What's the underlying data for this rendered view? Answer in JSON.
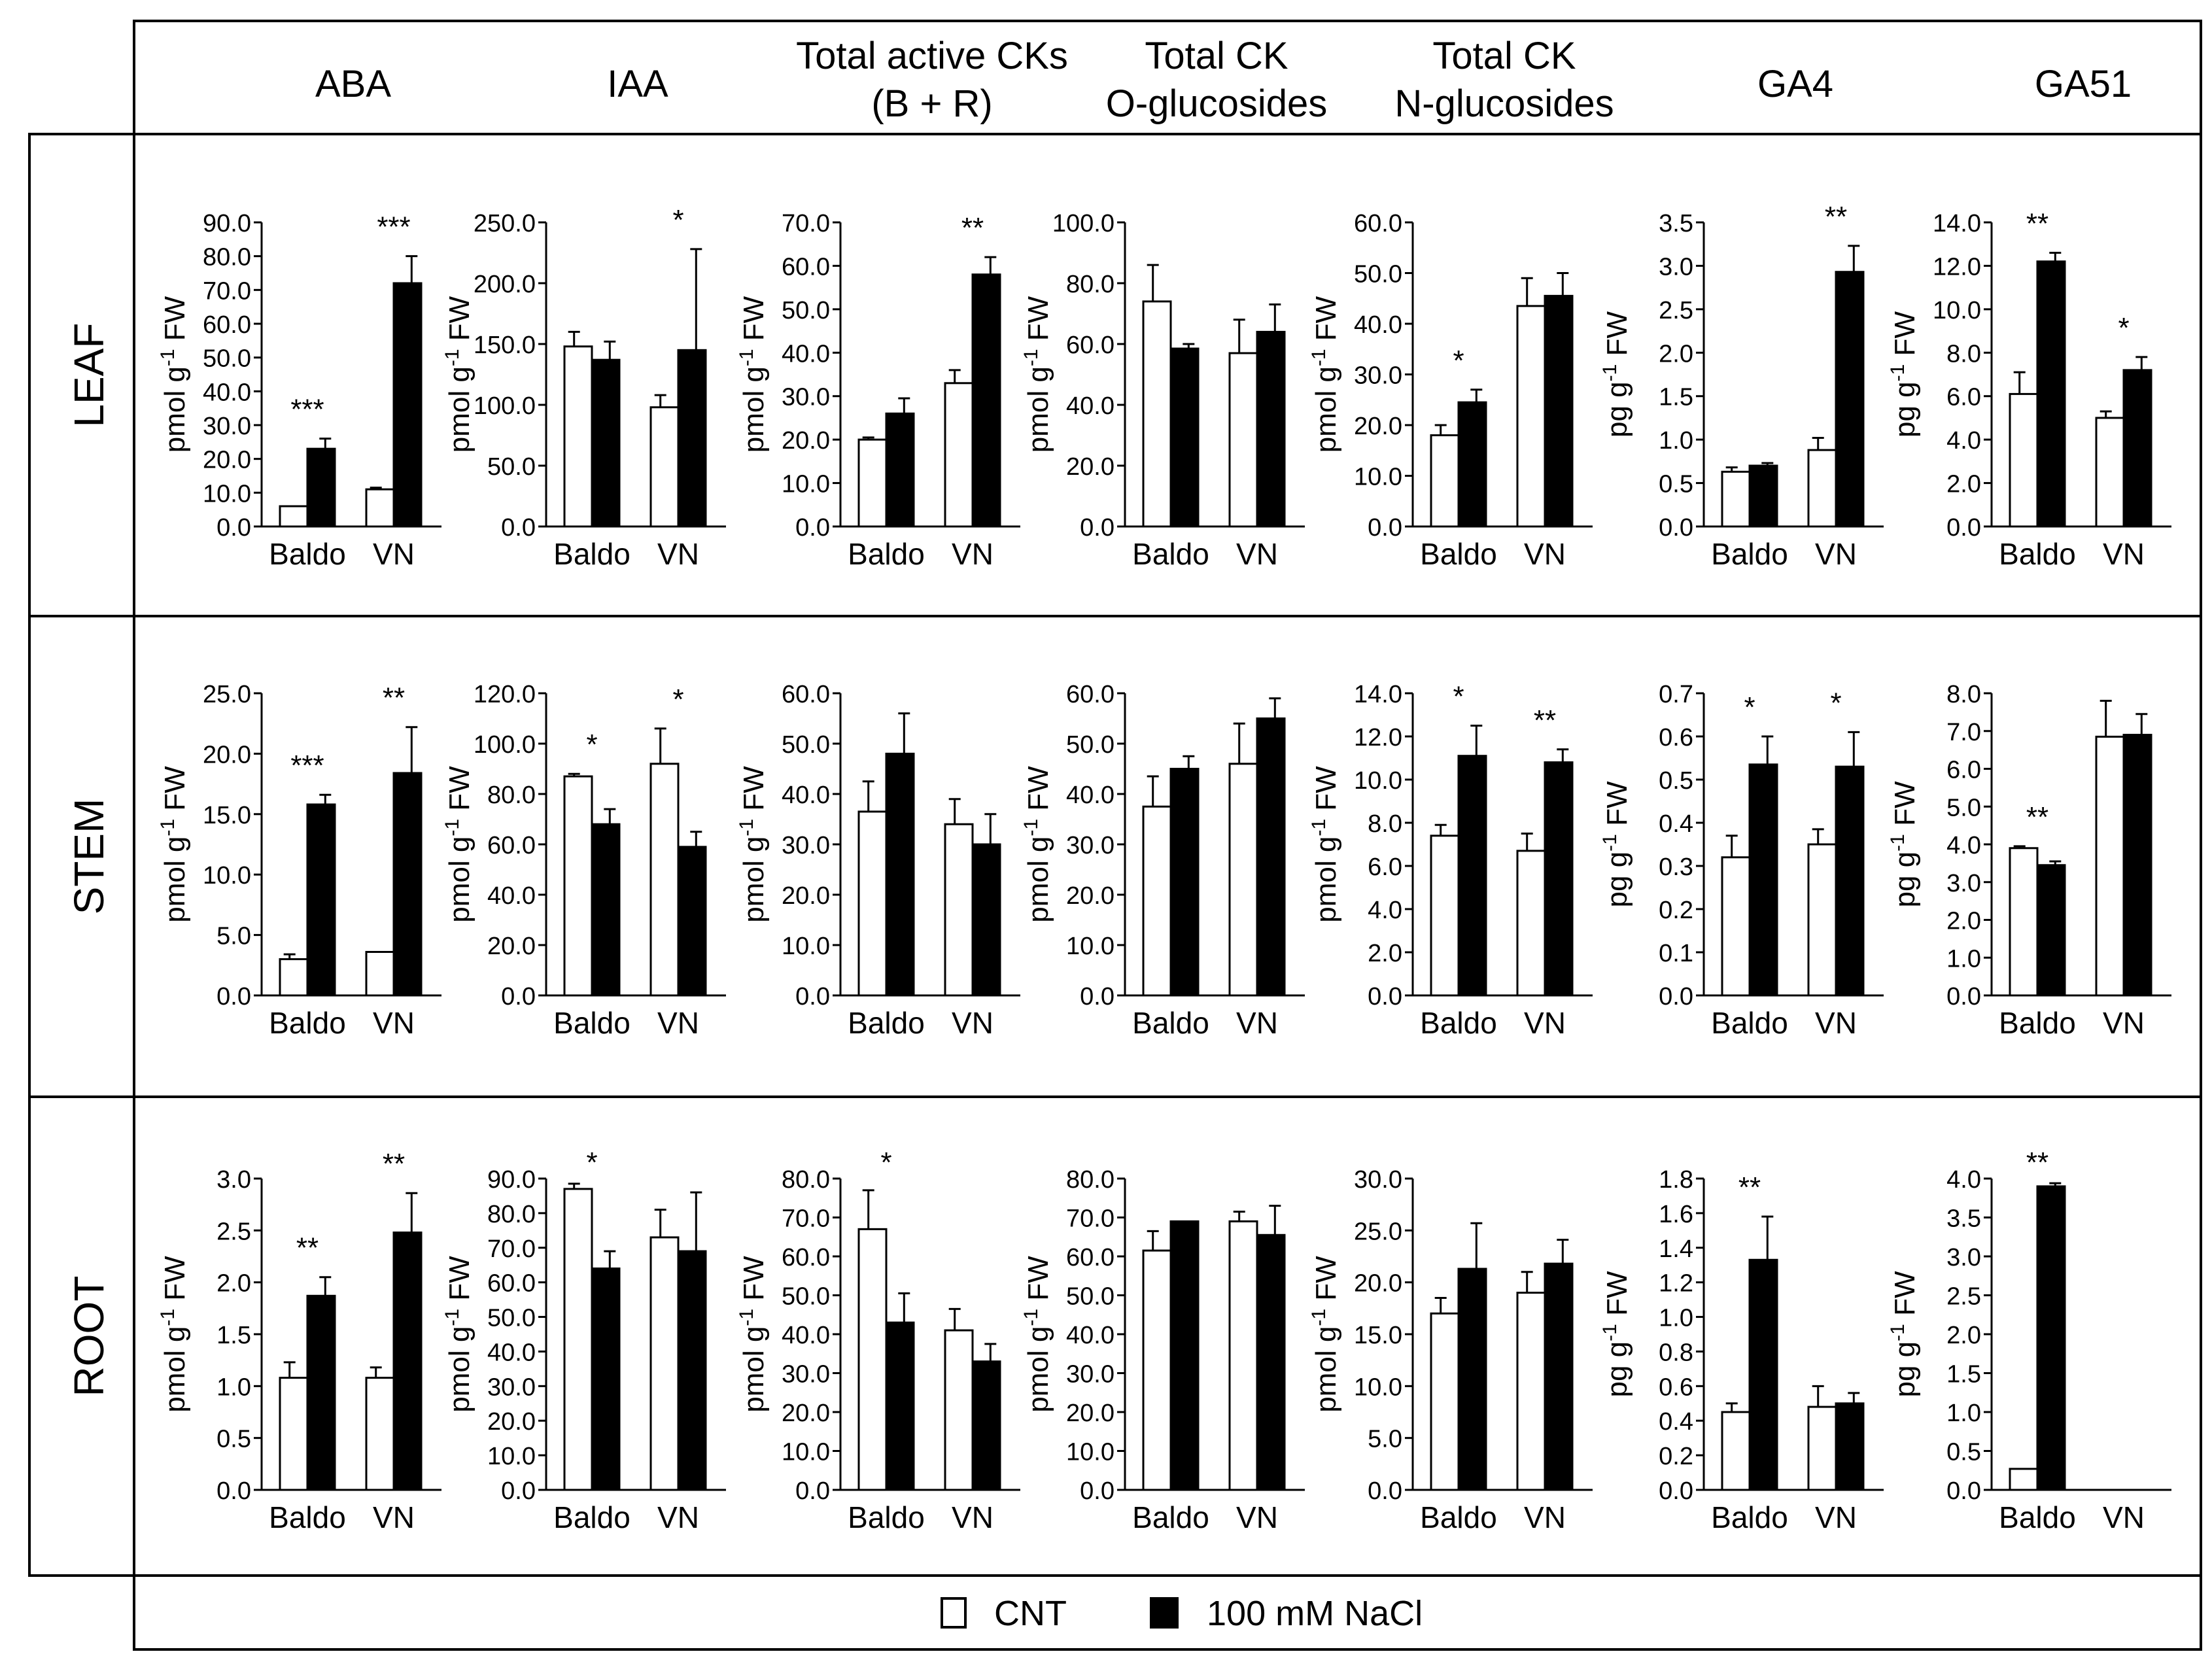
{
  "columns": [
    "ABA",
    "IAA",
    "Total active CKs\n(B + R)",
    "Total CK\nO-glucosides",
    "Total CK\nN-glucosides",
    "GA4",
    "GA51"
  ],
  "rows": [
    "LEAF",
    "STEM",
    "ROOT"
  ],
  "legend": {
    "cnt": "CNT",
    "nacl": "100 mM NaCl"
  },
  "colors": {
    "cnt": "#ffffff",
    "nacl": "#000000",
    "stroke": "#000000"
  },
  "chart_data": [
    {
      "type": "bar",
      "row": "LEAF",
      "hormone": "ABA",
      "ylabel": "pmol g-1 FW",
      "ylim": [
        0,
        90
      ],
      "ticks": [
        "0.0",
        "10.0",
        "20.0",
        "30.0",
        "40.0",
        "50.0",
        "60.0",
        "70.0",
        "80.0",
        "90.0"
      ],
      "categories": [
        "Baldo",
        "VN"
      ],
      "series": [
        {
          "name": "CNT",
          "values": [
            6,
            11
          ],
          "errors": [
            0,
            0.5
          ]
        },
        {
          "name": "100 mM NaCl",
          "values": [
            23,
            72
          ],
          "errors": [
            3,
            8
          ]
        }
      ],
      "significance": [
        "***",
        "***"
      ]
    },
    {
      "type": "bar",
      "row": "LEAF",
      "hormone": "IAA",
      "ylabel": "pmol g-1 FW",
      "ylim": [
        0,
        250
      ],
      "ticks": [
        "0.0",
        "50.0",
        "100.0",
        "150.0",
        "200.0",
        "250.0"
      ],
      "categories": [
        "Baldo",
        "VN"
      ],
      "series": [
        {
          "name": "CNT",
          "values": [
            148,
            98
          ],
          "errors": [
            12,
            10
          ]
        },
        {
          "name": "100 mM NaCl",
          "values": [
            137,
            145
          ],
          "errors": [
            15,
            83
          ]
        }
      ],
      "significance": [
        "",
        "*"
      ]
    },
    {
      "type": "bar",
      "row": "LEAF",
      "hormone": "Total active CKs (B + R)",
      "ylabel": "pmol g-1 FW",
      "ylim": [
        0,
        70
      ],
      "ticks": [
        "0.0",
        "10.0",
        "20.0",
        "30.0",
        "40.0",
        "50.0",
        "60.0",
        "70.0"
      ],
      "categories": [
        "Baldo",
        "VN"
      ],
      "series": [
        {
          "name": "CNT",
          "values": [
            20,
            33
          ],
          "errors": [
            0.5,
            3
          ]
        },
        {
          "name": "100 mM NaCl",
          "values": [
            26,
            58
          ],
          "errors": [
            3.5,
            4
          ]
        }
      ],
      "significance": [
        "",
        "**"
      ]
    },
    {
      "type": "bar",
      "row": "LEAF",
      "hormone": "Total CK O-glucosides",
      "ylabel": "pmol g-1 FW",
      "ylim": [
        0,
        100
      ],
      "ticks": [
        "0.0",
        "20.0",
        "40.0",
        "60.0",
        "80.0",
        "100.0"
      ],
      "categories": [
        "Baldo",
        "VN"
      ],
      "series": [
        {
          "name": "CNT",
          "values": [
            74,
            57
          ],
          "errors": [
            12,
            11
          ]
        },
        {
          "name": "100 mM NaCl",
          "values": [
            58.5,
            64
          ],
          "errors": [
            1.5,
            9
          ]
        }
      ],
      "significance": [
        "",
        ""
      ]
    },
    {
      "type": "bar",
      "row": "LEAF",
      "hormone": "Total CK N-glucosides",
      "ylabel": "pmol g-1 FW",
      "ylim": [
        0,
        60
      ],
      "ticks": [
        "0.0",
        "10.0",
        "20.0",
        "30.0",
        "40.0",
        "50.0",
        "60.0"
      ],
      "categories": [
        "Baldo",
        "VN"
      ],
      "series": [
        {
          "name": "CNT",
          "values": [
            18,
            43.5
          ],
          "errors": [
            2,
            5.5
          ]
        },
        {
          "name": "100 mM NaCl",
          "values": [
            24.5,
            45.5
          ],
          "errors": [
            2.5,
            4.5
          ]
        }
      ],
      "significance": [
        "*",
        ""
      ]
    },
    {
      "type": "bar",
      "row": "LEAF",
      "hormone": "GA4",
      "ylabel": "pg g-1 FW",
      "ylim": [
        0,
        3.5
      ],
      "ticks": [
        "0.0",
        "0.5",
        "1.0",
        "1.5",
        "2.0",
        "2.5",
        "3.0",
        "3.5"
      ],
      "categories": [
        "Baldo",
        "VN"
      ],
      "series": [
        {
          "name": "CNT",
          "values": [
            0.63,
            0.88
          ],
          "errors": [
            0.05,
            0.14
          ]
        },
        {
          "name": "100 mM NaCl",
          "values": [
            0.7,
            2.93
          ],
          "errors": [
            0.03,
            0.3
          ]
        }
      ],
      "significance": [
        "",
        "**"
      ]
    },
    {
      "type": "bar",
      "row": "LEAF",
      "hormone": "GA51",
      "ylabel": "pg g-1 FW",
      "ylim": [
        0,
        14
      ],
      "ticks": [
        "0.0",
        "2.0",
        "4.0",
        "6.0",
        "8.0",
        "10.0",
        "12.0",
        "14.0"
      ],
      "categories": [
        "Baldo",
        "VN"
      ],
      "series": [
        {
          "name": "CNT",
          "values": [
            6.1,
            5
          ],
          "errors": [
            1,
            0.3
          ]
        },
        {
          "name": "100 mM NaCl",
          "values": [
            12.2,
            7.2
          ],
          "errors": [
            0.4,
            0.6
          ]
        }
      ],
      "significance": [
        "**",
        "*"
      ]
    },
    {
      "type": "bar",
      "row": "STEM",
      "hormone": "ABA",
      "ylabel": "pmol g-1 FW",
      "ylim": [
        0,
        25
      ],
      "ticks": [
        "0.0",
        "5.0",
        "10.0",
        "15.0",
        "20.0",
        "25.0"
      ],
      "categories": [
        "Baldo",
        "VN"
      ],
      "series": [
        {
          "name": "CNT",
          "values": [
            3,
            3.6
          ],
          "errors": [
            0.4,
            0
          ]
        },
        {
          "name": "100 mM NaCl",
          "values": [
            15.8,
            18.4
          ],
          "errors": [
            0.8,
            3.8
          ]
        }
      ],
      "significance": [
        "***",
        "**"
      ]
    },
    {
      "type": "bar",
      "row": "STEM",
      "hormone": "IAA",
      "ylabel": "pmol g-1 FW",
      "ylim": [
        0,
        120
      ],
      "ticks": [
        "0.0",
        "20.0",
        "40.0",
        "60.0",
        "80.0",
        "100.0",
        "120.0"
      ],
      "categories": [
        "Baldo",
        "VN"
      ],
      "series": [
        {
          "name": "CNT",
          "values": [
            87,
            92
          ],
          "errors": [
            1,
            14
          ]
        },
        {
          "name": "100 mM NaCl",
          "values": [
            68,
            59
          ],
          "errors": [
            6,
            6
          ]
        }
      ],
      "significance": [
        "*",
        "*"
      ]
    },
    {
      "type": "bar",
      "row": "STEM",
      "hormone": "Total active CKs (B + R)",
      "ylabel": "pmol g-1 FW",
      "ylim": [
        0,
        60
      ],
      "ticks": [
        "0.0",
        "10.0",
        "20.0",
        "30.0",
        "40.0",
        "50.0",
        "60.0"
      ],
      "categories": [
        "Baldo",
        "VN"
      ],
      "series": [
        {
          "name": "CNT",
          "values": [
            36.5,
            34
          ],
          "errors": [
            6,
            5
          ]
        },
        {
          "name": "100 mM NaCl",
          "values": [
            48,
            30
          ],
          "errors": [
            8,
            6
          ]
        }
      ],
      "significance": [
        "",
        ""
      ]
    },
    {
      "type": "bar",
      "row": "STEM",
      "hormone": "Total CK O-glucosides",
      "ylabel": "pmol g-1 FW",
      "ylim": [
        0,
        60
      ],
      "ticks": [
        "0.0",
        "10.0",
        "20.0",
        "30.0",
        "40.0",
        "50.0",
        "60.0"
      ],
      "categories": [
        "Baldo",
        "VN"
      ],
      "series": [
        {
          "name": "CNT",
          "values": [
            37.5,
            46
          ],
          "errors": [
            6,
            8
          ]
        },
        {
          "name": "100 mM NaCl",
          "values": [
            45,
            55
          ],
          "errors": [
            2.5,
            4
          ]
        }
      ],
      "significance": [
        "",
        ""
      ]
    },
    {
      "type": "bar",
      "row": "STEM",
      "hormone": "Total CK N-glucosides",
      "ylabel": "pmol g-1 FW",
      "ylim": [
        0,
        14
      ],
      "ticks": [
        "0.0",
        "2.0",
        "4.0",
        "6.0",
        "8.0",
        "10.0",
        "12.0",
        "14.0"
      ],
      "categories": [
        "Baldo",
        "VN"
      ],
      "series": [
        {
          "name": "CNT",
          "values": [
            7.4,
            6.7
          ],
          "errors": [
            0.5,
            0.8
          ]
        },
        {
          "name": "100 mM NaCl",
          "values": [
            11.1,
            10.8
          ],
          "errors": [
            1.4,
            0.6
          ]
        }
      ],
      "significance": [
        "*",
        "**"
      ]
    },
    {
      "type": "bar",
      "row": "STEM",
      "hormone": "GA4",
      "ylabel": "pg g-1 FW",
      "ylim": [
        0,
        0.7
      ],
      "ticks": [
        "0.0",
        "0.1",
        "0.2",
        "0.3",
        "0.4",
        "0.5",
        "0.6",
        "0.7"
      ],
      "categories": [
        "Baldo",
        "VN"
      ],
      "series": [
        {
          "name": "CNT",
          "values": [
            0.32,
            0.35
          ],
          "errors": [
            0.05,
            0.035
          ]
        },
        {
          "name": "100 mM NaCl",
          "values": [
            0.535,
            0.53
          ],
          "errors": [
            0.065,
            0.08
          ]
        }
      ],
      "significance": [
        "*",
        "*"
      ]
    },
    {
      "type": "bar",
      "row": "STEM",
      "hormone": "GA51",
      "ylabel": "pg g-1 FW",
      "ylim": [
        0,
        8
      ],
      "ticks": [
        "0.0",
        "1.0",
        "2.0",
        "3.0",
        "4.0",
        "5.0",
        "6.0",
        "7.0",
        "8.0"
      ],
      "categories": [
        "Baldo",
        "VN"
      ],
      "series": [
        {
          "name": "CNT",
          "values": [
            3.9,
            6.85
          ],
          "errors": [
            0.05,
            0.95
          ]
        },
        {
          "name": "100 mM NaCl",
          "values": [
            3.45,
            6.9
          ],
          "errors": [
            0.1,
            0.55
          ]
        }
      ],
      "significance": [
        "**",
        ""
      ]
    },
    {
      "type": "bar",
      "row": "ROOT",
      "hormone": "ABA",
      "ylabel": "pmol g-1 FW",
      "ylim": [
        0,
        3
      ],
      "ticks": [
        "0.0",
        "0.5",
        "1.0",
        "1.5",
        "2.0",
        "2.5",
        "3.0"
      ],
      "categories": [
        "Baldo",
        "VN"
      ],
      "series": [
        {
          "name": "CNT",
          "values": [
            1.08,
            1.08
          ],
          "errors": [
            0.15,
            0.1
          ]
        },
        {
          "name": "100 mM NaCl",
          "values": [
            1.87,
            2.48
          ],
          "errors": [
            0.18,
            0.38
          ]
        }
      ],
      "significance": [
        "**",
        "**"
      ]
    },
    {
      "type": "bar",
      "row": "ROOT",
      "hormone": "IAA",
      "ylabel": "pmol g-1 FW",
      "ylim": [
        0,
        90
      ],
      "ticks": [
        "0.0",
        "10.0",
        "20.0",
        "30.0",
        "40.0",
        "50.0",
        "60.0",
        "70.0",
        "80.0",
        "90.0"
      ],
      "categories": [
        "Baldo",
        "VN"
      ],
      "series": [
        {
          "name": "CNT",
          "values": [
            87,
            73
          ],
          "errors": [
            1.5,
            8
          ]
        },
        {
          "name": "100 mM NaCl",
          "values": [
            64,
            69
          ],
          "errors": [
            5,
            17
          ]
        }
      ],
      "significance": [
        "*",
        ""
      ]
    },
    {
      "type": "bar",
      "row": "ROOT",
      "hormone": "Total active CKs (B + R)",
      "ylabel": "pmol g-1 FW",
      "ylim": [
        0,
        80
      ],
      "ticks": [
        "0.0",
        "10.0",
        "20.0",
        "30.0",
        "40.0",
        "50.0",
        "60.0",
        "70.0",
        "80.0"
      ],
      "categories": [
        "Baldo",
        "VN"
      ],
      "series": [
        {
          "name": "CNT",
          "values": [
            67,
            41
          ],
          "errors": [
            10,
            5.5
          ]
        },
        {
          "name": "100 mM NaCl",
          "values": [
            43,
            33
          ],
          "errors": [
            7.5,
            4.5
          ]
        }
      ],
      "significance": [
        "*",
        ""
      ]
    },
    {
      "type": "bar",
      "row": "ROOT",
      "hormone": "Total CK O-glucosides",
      "ylabel": "pmol g-1 FW",
      "ylim": [
        0,
        80
      ],
      "ticks": [
        "0.0",
        "10.0",
        "20.0",
        "30.0",
        "40.0",
        "50.0",
        "60.0",
        "70.0",
        "80.0"
      ],
      "categories": [
        "Baldo",
        "VN"
      ],
      "series": [
        {
          "name": "CNT",
          "values": [
            61.5,
            69
          ],
          "errors": [
            5,
            2.5
          ]
        },
        {
          "name": "100 mM NaCl",
          "values": [
            69,
            65.5
          ],
          "errors": [
            0,
            7.5
          ]
        }
      ],
      "significance": [
        "",
        ""
      ]
    },
    {
      "type": "bar",
      "row": "ROOT",
      "hormone": "Total CK N-glucosides",
      "ylabel": "pmol g-1 FW",
      "ylim": [
        0,
        30
      ],
      "ticks": [
        "0.0",
        "5.0",
        "10.0",
        "15.0",
        "20.0",
        "25.0",
        "30.0"
      ],
      "categories": [
        "Baldo",
        "VN"
      ],
      "series": [
        {
          "name": "CNT",
          "values": [
            17,
            19
          ],
          "errors": [
            1.5,
            2
          ]
        },
        {
          "name": "100 mM NaCl",
          "values": [
            21.3,
            21.8
          ],
          "errors": [
            4.4,
            2.3
          ]
        }
      ],
      "significance": [
        "",
        ""
      ]
    },
    {
      "type": "bar",
      "row": "ROOT",
      "hormone": "GA4",
      "ylabel": "pg g-1 FW",
      "ylim": [
        0,
        1.8
      ],
      "ticks": [
        "0.0",
        "0.2",
        "0.4",
        "0.6",
        "0.8",
        "1.0",
        "1.2",
        "1.4",
        "1.6",
        "1.8"
      ],
      "categories": [
        "Baldo",
        "VN"
      ],
      "series": [
        {
          "name": "CNT",
          "values": [
            0.45,
            0.48
          ],
          "errors": [
            0.05,
            0.12
          ]
        },
        {
          "name": "100 mM NaCl",
          "values": [
            1.33,
            0.5
          ],
          "errors": [
            0.25,
            0.06
          ]
        }
      ],
      "significance": [
        "**",
        ""
      ]
    },
    {
      "type": "bar",
      "row": "ROOT",
      "hormone": "GA51",
      "ylabel": "pg g-1 FW",
      "ylim": [
        0,
        4
      ],
      "ticks": [
        "0.0",
        "0.5",
        "1.0",
        "1.5",
        "2.0",
        "2.5",
        "3.0",
        "3.5",
        "4.0"
      ],
      "categories": [
        "Baldo",
        "VN"
      ],
      "series": [
        {
          "name": "CNT",
          "values": [
            0.27,
            0
          ],
          "errors": [
            0,
            0
          ]
        },
        {
          "name": "100 mM NaCl",
          "values": [
            3.9,
            0
          ],
          "errors": [
            0.04,
            0
          ]
        }
      ],
      "significance": [
        "**",
        ""
      ]
    }
  ]
}
